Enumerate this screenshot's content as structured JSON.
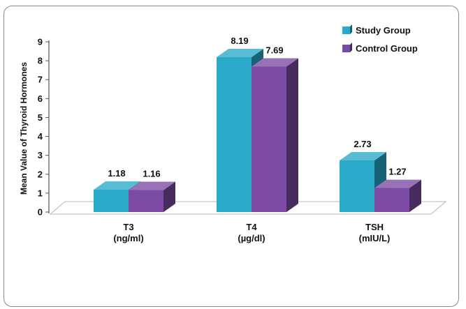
{
  "chart_data": {
    "type": "bar",
    "title": "",
    "ylabel": "Mean Value of Thyroid Hormones",
    "ylim": [
      0,
      9
    ],
    "yticks": [
      "0",
      "1",
      "2",
      "3",
      "4",
      "5",
      "6",
      "7",
      "8",
      "9"
    ],
    "categories": [
      {
        "line1": "T3",
        "line2": "(ng/ml)"
      },
      {
        "line1": "T4",
        "line2": "(µg/dl)"
      },
      {
        "line1": "TSH",
        "line2": "(mIU/L)"
      }
    ],
    "series": [
      {
        "name": "Study Group",
        "values": [
          1.18,
          8.19,
          2.73
        ],
        "labels": [
          "1.18",
          "8.19",
          "2.73"
        ],
        "color": "#2aa9c9"
      },
      {
        "name": "Control Group",
        "values": [
          1.16,
          7.69,
          1.27
        ],
        "labels": [
          "1.16",
          "7.69",
          "1.27"
        ],
        "color": "#7b4aa3"
      }
    ],
    "legend_position": "top-right",
    "grid": false,
    "style": "3d"
  }
}
